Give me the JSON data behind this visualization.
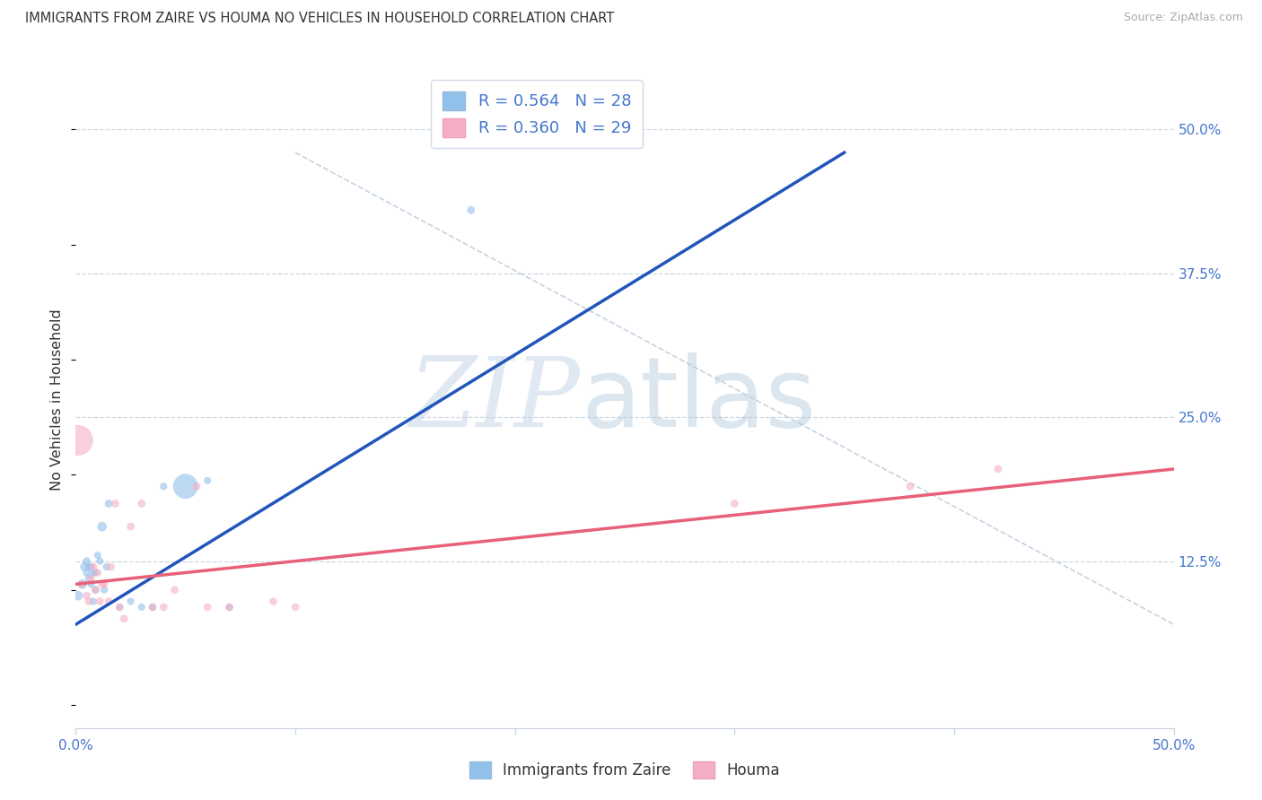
{
  "title": "IMMIGRANTS FROM ZAIRE VS HOUMA NO VEHICLES IN HOUSEHOLD CORRELATION CHART",
  "source": "Source: ZipAtlas.com",
  "ylabel": "No Vehicles in Household",
  "x_min": 0.0,
  "x_max": 0.5,
  "y_min": -0.02,
  "y_max": 0.55,
  "y_ticks_right": [
    0.5,
    0.375,
    0.25,
    0.125
  ],
  "y_tick_labels_right": [
    "50.0%",
    "37.5%",
    "25.0%",
    "12.5%"
  ],
  "x_ticks": [
    0.0,
    0.1,
    0.2,
    0.3,
    0.4,
    0.5
  ],
  "x_tick_labels": [
    "0.0%",
    "",
    "",
    "",
    "",
    "50.0%"
  ],
  "legend_R1": "0.564",
  "legend_N1": "28",
  "legend_R2": "0.360",
  "legend_N2": "29",
  "color_blue": "#91c0ea",
  "color_pink": "#f5afc4",
  "line_blue": "#2255bb",
  "line_pink": "#e8607a",
  "background": "#ffffff",
  "blue_points_x": [
    0.001,
    0.003,
    0.004,
    0.005,
    0.005,
    0.006,
    0.006,
    0.007,
    0.007,
    0.008,
    0.008,
    0.009,
    0.009,
    0.01,
    0.011,
    0.012,
    0.013,
    0.014,
    0.015,
    0.02,
    0.025,
    0.03,
    0.035,
    0.04,
    0.05,
    0.06,
    0.07,
    0.18
  ],
  "blue_points_y": [
    0.095,
    0.105,
    0.12,
    0.115,
    0.125,
    0.11,
    0.12,
    0.105,
    0.12,
    0.09,
    0.115,
    0.1,
    0.115,
    0.13,
    0.125,
    0.155,
    0.1,
    0.12,
    0.175,
    0.085,
    0.09,
    0.085,
    0.085,
    0.19,
    0.19,
    0.195,
    0.085,
    0.43
  ],
  "blue_sizes": [
    60,
    60,
    50,
    40,
    40,
    40,
    35,
    35,
    35,
    35,
    35,
    35,
    35,
    35,
    35,
    60,
    35,
    35,
    40,
    35,
    35,
    35,
    35,
    35,
    400,
    35,
    35,
    40
  ],
  "pink_points_x": [
    0.001,
    0.003,
    0.005,
    0.006,
    0.007,
    0.008,
    0.009,
    0.01,
    0.011,
    0.012,
    0.013,
    0.015,
    0.016,
    0.018,
    0.02,
    0.022,
    0.025,
    0.03,
    0.035,
    0.04,
    0.045,
    0.055,
    0.06,
    0.07,
    0.09,
    0.1,
    0.3,
    0.38,
    0.42
  ],
  "pink_points_y": [
    0.23,
    0.105,
    0.095,
    0.09,
    0.11,
    0.12,
    0.1,
    0.115,
    0.09,
    0.105,
    0.105,
    0.09,
    0.12,
    0.175,
    0.085,
    0.075,
    0.155,
    0.175,
    0.085,
    0.085,
    0.1,
    0.19,
    0.085,
    0.085,
    0.09,
    0.085,
    0.175,
    0.19,
    0.205
  ],
  "pink_sizes": [
    600,
    40,
    40,
    40,
    40,
    40,
    40,
    40,
    40,
    40,
    40,
    40,
    40,
    40,
    40,
    40,
    40,
    40,
    40,
    40,
    40,
    40,
    40,
    40,
    40,
    40,
    40,
    40,
    40
  ],
  "blue_line_x": [
    0.0,
    0.35
  ],
  "blue_line_y": [
    0.07,
    0.48
  ],
  "pink_line_x": [
    0.0,
    0.5
  ],
  "pink_line_y": [
    0.105,
    0.205
  ],
  "dash_line_x": [
    0.1,
    0.5
  ],
  "dash_line_y": [
    0.48,
    0.07
  ]
}
